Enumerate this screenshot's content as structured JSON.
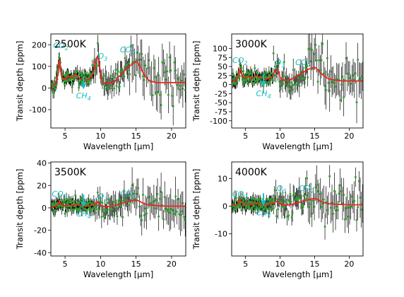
{
  "colors": {
    "errorbar": "#000000",
    "points": "#2ca02c",
    "model": "#e8281e",
    "annotation": "#17bfbf"
  },
  "chart_data": [
    {
      "type": "line",
      "title": "2500K",
      "xlabel": "Wavelength [µm]",
      "ylabel": "Transit depth [ppm]",
      "xlim": [
        3,
        22
      ],
      "ylim": [
        -185,
        250
      ],
      "xticks": [
        5,
        10,
        15,
        20
      ],
      "yticks": [
        -100,
        0,
        100,
        200
      ],
      "model": {
        "x": [
          3,
          3.6,
          4.0,
          4.2,
          4.35,
          4.6,
          5.0,
          5.5,
          6.0,
          6.5,
          7.0,
          7.5,
          8.0,
          8.5,
          9.0,
          9.3,
          9.6,
          9.8,
          10.0,
          10.3,
          10.8,
          11.5,
          12.0,
          12.5,
          13.0,
          13.5,
          14.0,
          14.5,
          15.0,
          15.3,
          15.6,
          16.0,
          16.5,
          17.0,
          18.0,
          19.0,
          20.0,
          21.0,
          22.0
        ],
        "y": [
          5,
          15,
          60,
          130,
          100,
          45,
          40,
          55,
          45,
          65,
          45,
          40,
          35,
          45,
          70,
          125,
          145,
          120,
          60,
          25,
          20,
          22,
          30,
          50,
          65,
          85,
          100,
          110,
          125,
          115,
          95,
          70,
          45,
          30,
          25,
          25,
          25,
          25,
          25
        ]
      },
      "annotations": [
        {
          "base": "CO",
          "sub": "2",
          "x": 4.4,
          "y": 185
        },
        {
          "base": "O",
          "sub": "3",
          "x": 10.3,
          "y": 135
        },
        {
          "base": "CO",
          "sub": "2",
          "x": 13.8,
          "y": 165
        },
        {
          "base": "CH",
          "sub": "4",
          "x": 7.6,
          "y": -45,
          "arrow": true
        }
      ]
    },
    {
      "type": "line",
      "title": "3000K",
      "xlabel": "Wavelength [µm]",
      "ylabel": "Transit depth [ppm]",
      "xlim": [
        3,
        22
      ],
      "ylim": [
        -120,
        140
      ],
      "xticks": [
        5,
        10,
        15,
        20
      ],
      "yticks": [
        -100,
        -75,
        -50,
        -25,
        0,
        25,
        50,
        75,
        100
      ],
      "model": {
        "x": [
          3,
          3.6,
          4.0,
          4.2,
          4.35,
          4.6,
          5.0,
          5.5,
          6.0,
          6.5,
          7.0,
          7.5,
          8.0,
          8.5,
          9.0,
          9.3,
          9.6,
          9.8,
          10.0,
          10.3,
          10.8,
          11.5,
          12.0,
          12.5,
          13.0,
          13.5,
          14.0,
          14.5,
          15.0,
          15.3,
          15.6,
          16.0,
          16.5,
          17.0,
          18.0,
          19.0,
          20.0,
          21.0,
          22.0
        ],
        "y": [
          8,
          12,
          25,
          45,
          38,
          20,
          18,
          22,
          18,
          25,
          20,
          18,
          15,
          18,
          25,
          38,
          42,
          35,
          20,
          14,
          12,
          14,
          18,
          24,
          30,
          36,
          42,
          45,
          48,
          44,
          38,
          30,
          22,
          16,
          12,
          10,
          10,
          10,
          10
        ]
      },
      "annotations": [
        {
          "base": "CO",
          "sub": "2",
          "x": 4.2,
          "y": 60
        },
        {
          "base": "O",
          "sub": "3",
          "x": 10.0,
          "y": 54
        },
        {
          "base": "CO",
          "sub": "2",
          "x": 13.3,
          "y": 54
        },
        {
          "base": "CH",
          "sub": "4",
          "x": 7.6,
          "y": -30,
          "arrow": true
        }
      ]
    },
    {
      "type": "line",
      "title": "3500K",
      "xlabel": "Wavelength [µm]",
      "ylabel": "Transit depth [ppm]",
      "xlim": [
        3,
        22
      ],
      "ylim": [
        -43,
        41
      ],
      "xticks": [
        5,
        10,
        15,
        20
      ],
      "yticks": [
        -40,
        -20,
        0,
        20,
        40
      ],
      "model": {
        "x": [
          3,
          3.6,
          4.0,
          4.2,
          4.35,
          4.6,
          5.0,
          5.5,
          6.0,
          6.5,
          7.0,
          7.5,
          8.0,
          8.5,
          9.0,
          9.3,
          9.6,
          9.8,
          10.0,
          10.3,
          10.8,
          11.5,
          12.0,
          12.5,
          13.0,
          13.5,
          14.0,
          14.5,
          15.0,
          15.3,
          15.6,
          16.0,
          16.5,
          17.0,
          18.0,
          19.0,
          20.0,
          21.0,
          22.0
        ],
        "y": [
          1,
          1.5,
          3,
          6,
          4,
          2,
          2,
          2.5,
          2,
          3,
          2.5,
          2,
          1.5,
          2,
          2.5,
          4,
          5,
          4,
          2.5,
          1.5,
          1,
          1.5,
          2,
          3,
          4,
          5,
          6,
          6.5,
          7,
          6.5,
          5.5,
          4,
          3,
          2.5,
          2,
          1.5,
          1.5,
          1.5,
          1.5
        ]
      },
      "annotations": [
        {
          "base": "CO",
          "sub": "2",
          "x": 4.2,
          "y": 10
        },
        {
          "base": "O",
          "sub": "3",
          "x": 10.3,
          "y": 8
        },
        {
          "base": "CO",
          "sub": "2",
          "x": 13.8,
          "y": 10
        },
        {
          "base": "CH",
          "sub": "4",
          "x": 7.6,
          "y": -7,
          "arrow": true
        }
      ]
    },
    {
      "type": "line",
      "title": "4000K",
      "xlabel": "Wavelength [µm]",
      "ylabel": "Transit depth [ppm]",
      "xlim": [
        3,
        22
      ],
      "ylim": [
        -18,
        16
      ],
      "xticks": [
        5,
        10,
        15,
        20
      ],
      "yticks": [
        -10,
        0,
        10
      ],
      "model": {
        "x": [
          3,
          3.6,
          4.0,
          4.2,
          4.35,
          4.6,
          5.0,
          5.5,
          6.0,
          6.5,
          7.0,
          7.5,
          8.0,
          8.5,
          9.0,
          9.3,
          9.6,
          9.8,
          10.0,
          10.3,
          10.8,
          11.5,
          12.0,
          12.5,
          13.0,
          13.5,
          14.0,
          14.5,
          15.0,
          15.3,
          15.6,
          16.0,
          16.5,
          17.0,
          18.0,
          19.0,
          20.0,
          21.0,
          22.0
        ],
        "y": [
          0.4,
          0.5,
          1,
          2.5,
          1.8,
          0.8,
          0.7,
          0.8,
          0.7,
          1,
          0.8,
          0.7,
          0.6,
          0.8,
          1,
          1.5,
          1.8,
          1.5,
          0.9,
          0.5,
          0.4,
          0.5,
          0.8,
          1.2,
          1.6,
          2,
          2.3,
          2.6,
          2.8,
          2.6,
          2.2,
          1.7,
          1.2,
          0.9,
          0.7,
          0.6,
          0.5,
          0.5,
          0.5
        ]
      },
      "annotations": [
        {
          "base": "CO",
          "sub": "2",
          "x": 4.2,
          "y": 3.5
        },
        {
          "base": "O",
          "sub": "3",
          "x": 10.2,
          "y": 5.5
        },
        {
          "base": "CO",
          "sub": "2",
          "x": 13.8,
          "y": 5.5
        },
        {
          "base": "CH",
          "sub": "4",
          "x": 7.6,
          "y": -3,
          "arrow": true
        }
      ]
    }
  ]
}
